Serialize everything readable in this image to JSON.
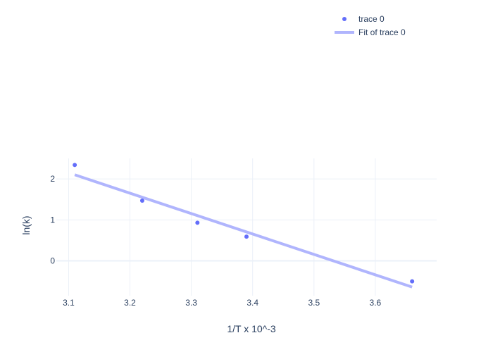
{
  "chart_data": {
    "type": "scatter",
    "xlabel": "1/T x 10^-3",
    "ylabel": "ln(k)",
    "xlim": [
      3.08,
      3.7
    ],
    "ylim": [
      -0.85,
      2.5
    ],
    "x_ticks": [
      3.1,
      3.2,
      3.3,
      3.4,
      3.5,
      3.6
    ],
    "x_tick_labels": [
      "3.1",
      "3.2",
      "3.3",
      "3.4",
      "3.5",
      "3.6"
    ],
    "y_ticks": [
      0,
      1,
      2
    ],
    "y_tick_labels": [
      "0",
      "1",
      "2"
    ],
    "grid": true,
    "legend": "top-right",
    "series": [
      {
        "name": "trace 0",
        "mode": "markers",
        "color": "#636efa",
        "x": [
          3.11,
          3.22,
          3.31,
          3.39,
          3.66
        ],
        "y": [
          2.34,
          1.47,
          0.93,
          0.59,
          -0.5
        ]
      },
      {
        "name": "Fit of trace 0",
        "mode": "lines",
        "color": "#b0b5fd",
        "x": [
          3.11,
          3.66
        ],
        "y": [
          2.1,
          -0.64
        ]
      }
    ]
  }
}
